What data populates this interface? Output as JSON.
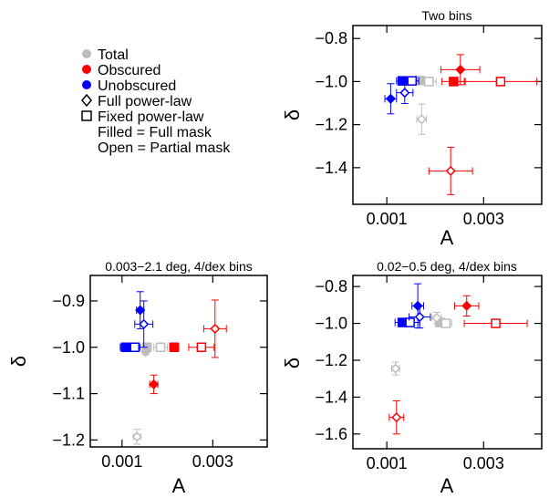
{
  "legend": {
    "items": [
      {
        "label": "Total",
        "marker": "dot",
        "color": "#bdbdbd"
      },
      {
        "label": "Obscured",
        "marker": "dot",
        "color": "#ff0000"
      },
      {
        "label": "Unobscured",
        "marker": "dot",
        "color": "#0000ff"
      },
      {
        "label": "Full power-law",
        "marker": "diamond",
        "color": "#000000"
      },
      {
        "label": "Fixed power-law",
        "marker": "square",
        "color": "#000000"
      }
    ],
    "notes": [
      "Filled = Full mask",
      "Open = Partial mask"
    ]
  },
  "colors": {
    "total": "#bdbdbd",
    "obscured": "#ff0000",
    "unobscured": "#0000ff"
  },
  "chart_data": [
    {
      "type": "scatter",
      "title": "Two bins",
      "xlabel": "A",
      "ylabel": "δ",
      "xlim": [
        0.0003,
        0.0042
      ],
      "ylim": [
        -1.57,
        -0.74
      ],
      "xticks": [
        0.001,
        0.003
      ],
      "xtick_labels": [
        "0.001",
        "0.003"
      ],
      "yticks": [
        -0.8,
        -1.0,
        -1.2,
        -1.4
      ],
      "ytick_labels": [
        "−0.8",
        "−1.0",
        "−1.2",
        "−1.4"
      ],
      "series": [
        {
          "name": "Total",
          "points": [
            {
              "x": 0.00168,
              "y": -0.995,
              "xerr": 0.00012,
              "yerr": 0.0,
              "marker": "square",
              "filled": true
            },
            {
              "x": 0.00187,
              "y": -1.0,
              "xerr": 0.00015,
              "yerr": 0.0,
              "marker": "square",
              "filled": false
            },
            {
              "x": 0.00172,
              "y": -1.175,
              "xerr": 0.0001,
              "yerr": 0.07,
              "marker": "diamond",
              "filled": false
            }
          ]
        },
        {
          "name": "Obscured",
          "points": [
            {
              "x": 0.00252,
              "y": -0.945,
              "xerr": 0.0004,
              "yerr": 0.07,
              "marker": "diamond",
              "filled": true
            },
            {
              "x": 0.00238,
              "y": -1.0,
              "xerr": 0.00024,
              "yerr": 0.0,
              "marker": "square",
              "filled": true
            },
            {
              "x": 0.00335,
              "y": -1.0,
              "xerr": 0.00075,
              "yerr": 0.0,
              "marker": "square",
              "filled": false
            },
            {
              "x": 0.00232,
              "y": -1.415,
              "xerr": 0.00045,
              "yerr": 0.11,
              "marker": "diamond",
              "filled": false
            }
          ]
        },
        {
          "name": "Unobscured",
          "points": [
            {
              "x": 0.00132,
              "y": -0.997,
              "xerr": 0.00012,
              "yerr": 0.0,
              "marker": "square",
              "filled": true
            },
            {
              "x": 0.00152,
              "y": -0.997,
              "xerr": 0.00014,
              "yerr": 0.0,
              "marker": "square",
              "filled": false
            },
            {
              "x": 0.00108,
              "y": -1.08,
              "xerr": 0.00012,
              "yerr": 0.07,
              "marker": "diamond",
              "filled": true
            },
            {
              "x": 0.00137,
              "y": -1.052,
              "xerr": 0.00017,
              "yerr": 0.05,
              "marker": "diamond",
              "filled": false
            }
          ]
        }
      ]
    },
    {
      "type": "scatter",
      "title": "0.003−2.1 deg, 4/dex bins",
      "xlabel": "A",
      "ylabel": "δ",
      "xlim": [
        0.0003,
        0.0042
      ],
      "ylim": [
        -1.215,
        -0.845
      ],
      "xticks": [
        0.001,
        0.003
      ],
      "xtick_labels": [
        "0.001",
        "0.003"
      ],
      "yticks": [
        -0.9,
        -1.0,
        -1.1,
        -1.2
      ],
      "ytick_labels": [
        "−0.9",
        "−1.0",
        "−1.1",
        "−1.2"
      ],
      "series": [
        {
          "name": "Total",
          "points": [
            {
              "x": 0.00155,
              "y": -1.0,
              "xerr": 8e-05,
              "yerr": 0.0,
              "marker": "square",
              "filled": true
            },
            {
              "x": 0.00152,
              "y": -1.01,
              "xerr": 4e-05,
              "yerr": 0.006,
              "marker": "diamond",
              "filled": true
            },
            {
              "x": 0.00185,
              "y": -1.0,
              "xerr": 0.00015,
              "yerr": 0.0,
              "marker": "square",
              "filled": false
            },
            {
              "x": 0.00133,
              "y": -1.193,
              "xerr": 8e-05,
              "yerr": 0.016,
              "marker": "diamond",
              "filled": false
            }
          ]
        },
        {
          "name": "Obscured",
          "points": [
            {
              "x": 0.00215,
              "y": -1.0,
              "xerr": 0.0001,
              "yerr": 0.0,
              "marker": "square",
              "filled": true
            },
            {
              "x": 0.00275,
              "y": -1.0,
              "xerr": 0.00028,
              "yerr": 0.0,
              "marker": "square",
              "filled": false
            },
            {
              "x": 0.0017,
              "y": -1.08,
              "xerr": 9e-05,
              "yerr": 0.02,
              "marker": "diamond",
              "filled": true
            },
            {
              "x": 0.00305,
              "y": -0.96,
              "xerr": 0.00025,
              "yerr": 0.062,
              "marker": "diamond",
              "filled": false
            }
          ]
        },
        {
          "name": "Unobscured",
          "points": [
            {
              "x": 0.00108,
              "y": -1.0,
              "xerr": 0.00012,
              "yerr": 0.0,
              "marker": "square",
              "filled": true
            },
            {
              "x": 0.00128,
              "y": -1.0,
              "xerr": 0.00012,
              "yerr": 0.0,
              "marker": "square",
              "filled": false
            },
            {
              "x": 0.0014,
              "y": -0.92,
              "xerr": 8e-05,
              "yerr": 0.04,
              "marker": "diamond",
              "filled": true
            },
            {
              "x": 0.00148,
              "y": -0.95,
              "xerr": 0.0002,
              "yerr": 0.05,
              "marker": "diamond",
              "filled": false
            }
          ]
        }
      ]
    },
    {
      "type": "scatter",
      "title": "0.02−0.5 deg, 4/dex bins",
      "xlabel": "A",
      "ylabel": "δ",
      "xlim": [
        0.0003,
        0.0042
      ],
      "ylim": [
        -1.68,
        -0.74
      ],
      "xticks": [
        0.001,
        0.003
      ],
      "xtick_labels": [
        "0.001",
        "0.003"
      ],
      "yticks": [
        -0.8,
        -1.0,
        -1.2,
        -1.4,
        -1.6
      ],
      "ytick_labels": [
        "−0.8",
        "−1.0",
        "−1.2",
        "−1.4",
        "−1.6"
      ],
      "series": [
        {
          "name": "Total",
          "points": [
            {
              "x": 0.0021,
              "y": -0.995,
              "xerr": 0.0001,
              "yerr": 0.0,
              "marker": "square",
              "filled": true
            },
            {
              "x": 0.00222,
              "y": -1.0,
              "xerr": 0.00012,
              "yerr": 0.0,
              "marker": "square",
              "filled": false
            },
            {
              "x": 0.00203,
              "y": -0.97,
              "xerr": 0.0001,
              "yerr": 0.03,
              "marker": "diamond",
              "filled": false
            },
            {
              "x": 0.00118,
              "y": -1.245,
              "xerr": 8e-05,
              "yerr": 0.035,
              "marker": "diamond",
              "filled": false
            }
          ]
        },
        {
          "name": "Obscured",
          "points": [
            {
              "x": 0.00265,
              "y": -0.905,
              "xerr": 0.00025,
              "yerr": 0.055,
              "marker": "diamond",
              "filled": true
            },
            {
              "x": 0.00325,
              "y": -1.0,
              "xerr": 0.00065,
              "yerr": 0.0,
              "marker": "square",
              "filled": false
            },
            {
              "x": 0.0012,
              "y": -1.51,
              "xerr": 0.00015,
              "yerr": 0.09,
              "marker": "diamond",
              "filled": false
            }
          ]
        },
        {
          "name": "Unobscured",
          "points": [
            {
              "x": 0.00132,
              "y": -0.995,
              "xerr": 0.00015,
              "yerr": 0.0,
              "marker": "square",
              "filled": true
            },
            {
              "x": 0.00148,
              "y": -0.995,
              "xerr": 0.0002,
              "yerr": 0.0,
              "marker": "square",
              "filled": false
            },
            {
              "x": 0.00164,
              "y": -0.905,
              "xerr": 0.00012,
              "yerr": 0.12,
              "marker": "diamond",
              "filled": true
            },
            {
              "x": 0.00168,
              "y": -0.965,
              "xerr": 0.00022,
              "yerr": 0.06,
              "marker": "diamond",
              "filled": false
            }
          ]
        }
      ]
    }
  ]
}
